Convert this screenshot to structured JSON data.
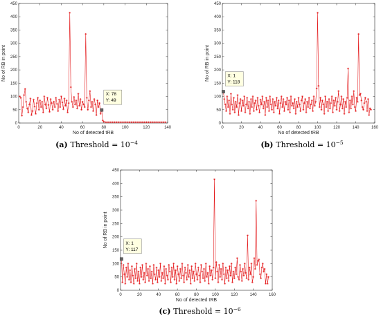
{
  "colors": {
    "series": "#e41a1c",
    "axis": "#262626",
    "datatip_bg": "#ffffe1",
    "datatip_border": "#7f7f7f"
  },
  "chart_data": [
    {
      "id": "a",
      "type": "line",
      "caption_letter": "(a)",
      "caption_text": "Threshold = 10",
      "caption_exp": "−4",
      "xlabel": "No of detected tRB",
      "ylabel": "No of RB in point",
      "xlim": [
        0,
        140
      ],
      "ylim": [
        0,
        450
      ],
      "xticks": [
        0,
        20,
        40,
        60,
        80,
        100,
        120,
        140
      ],
      "yticks": [
        0,
        50,
        100,
        150,
        200,
        250,
        300,
        350,
        400,
        450
      ],
      "grid": false,
      "datatip": {
        "point": [
          78,
          49
        ],
        "x_text": "X: 78",
        "y_text": "Y: 49"
      },
      "x": [
        1,
        2,
        3,
        4,
        5,
        6,
        7,
        8,
        9,
        10,
        11,
        12,
        13,
        14,
        15,
        16,
        17,
        18,
        19,
        20,
        21,
        22,
        23,
        24,
        25,
        26,
        27,
        28,
        29,
        30,
        31,
        32,
        33,
        34,
        35,
        36,
        37,
        38,
        39,
        40,
        41,
        42,
        43,
        44,
        45,
        46,
        47,
        48,
        49,
        50,
        51,
        52,
        53,
        54,
        55,
        56,
        57,
        58,
        59,
        60,
        61,
        62,
        63,
        64,
        65,
        66,
        67,
        68,
        69,
        70,
        71,
        72,
        73,
        74,
        75,
        76,
        77,
        78,
        79,
        80,
        82,
        84,
        86,
        88,
        90,
        92,
        94,
        96,
        98,
        100,
        102,
        104,
        106,
        108,
        110,
        112,
        114,
        116,
        118,
        120,
        122,
        124,
        126,
        128,
        130,
        132,
        134,
        136,
        138
      ],
      "y": [
        100,
        95,
        28,
        60,
        105,
        128,
        80,
        55,
        40,
        70,
        92,
        30,
        45,
        88,
        62,
        35,
        75,
        95,
        50,
        85,
        60,
        80,
        40,
        100,
        70,
        55,
        95,
        68,
        42,
        90,
        75,
        50,
        80,
        60,
        95,
        72,
        45,
        88,
        60,
        100,
        78,
        52,
        92,
        65,
        85,
        40,
        75,
        415,
        135,
        80,
        60,
        98,
        70,
        85,
        55,
        110,
        65,
        90,
        50,
        80,
        70,
        60,
        335,
        95,
        50,
        85,
        120,
        60,
        80,
        45,
        90,
        70,
        30,
        85,
        60,
        75,
        35,
        49,
        10,
        5,
        3,
        3,
        3,
        3,
        3,
        3,
        3,
        3,
        3,
        3,
        3,
        3,
        3,
        3,
        3,
        3,
        3,
        3,
        3,
        3,
        3,
        3,
        3,
        3,
        3,
        3,
        3,
        3,
        3
      ]
    },
    {
      "id": "b",
      "type": "line",
      "caption_letter": "(b)",
      "caption_text": "Threshold = 10",
      "caption_exp": "−5",
      "xlabel": "No of detected tRB",
      "ylabel": "No of RB in point",
      "xlim": [
        0,
        160
      ],
      "ylim": [
        0,
        450
      ],
      "xticks": [
        0,
        20,
        40,
        60,
        80,
        100,
        120,
        140,
        160
      ],
      "yticks": [
        0,
        50,
        100,
        150,
        200,
        250,
        300,
        350,
        400,
        450
      ],
      "grid": false,
      "datatip": {
        "point": [
          1,
          118
        ],
        "x_text": "X: 1",
        "y_text": "Y: 118"
      },
      "x": [
        1,
        2,
        3,
        4,
        5,
        6,
        7,
        8,
        9,
        10,
        11,
        12,
        13,
        14,
        15,
        16,
        17,
        18,
        19,
        20,
        21,
        22,
        23,
        24,
        25,
        26,
        27,
        28,
        29,
        30,
        31,
        32,
        33,
        34,
        35,
        36,
        37,
        38,
        39,
        40,
        41,
        42,
        43,
        44,
        45,
        46,
        47,
        48,
        49,
        50,
        51,
        52,
        53,
        54,
        55,
        56,
        57,
        58,
        59,
        60,
        61,
        62,
        63,
        64,
        65,
        66,
        67,
        68,
        69,
        70,
        71,
        72,
        73,
        74,
        75,
        76,
        77,
        78,
        79,
        80,
        81,
        82,
        83,
        84,
        85,
        86,
        87,
        88,
        89,
        90,
        91,
        92,
        93,
        94,
        95,
        96,
        97,
        98,
        99,
        100,
        101,
        102,
        103,
        104,
        105,
        106,
        107,
        108,
        109,
        110,
        111,
        112,
        113,
        114,
        115,
        116,
        117,
        118,
        119,
        120,
        121,
        122,
        123,
        124,
        125,
        126,
        127,
        128,
        129,
        130,
        131,
        132,
        133,
        134,
        135,
        136,
        137,
        138,
        139,
        140,
        141,
        142,
        143,
        144,
        145,
        146,
        147,
        148,
        149,
        150,
        151,
        152,
        153,
        154,
        155,
        156
      ],
      "y": [
        118,
        90,
        70,
        45,
        100,
        60,
        85,
        35,
        110,
        70,
        50,
        95,
        40,
        80,
        60,
        105,
        30,
        75,
        90,
        45,
        85,
        65,
        100,
        40,
        70,
        95,
        55,
        80,
        35,
        90,
        60,
        100,
        45,
        75,
        85,
        50,
        95,
        65,
        40,
        88,
        70,
        100,
        55,
        80,
        30,
        95,
        60,
        85,
        45,
        100,
        70,
        50,
        90,
        40,
        80,
        65,
        95,
        55,
        85,
        35,
        75,
        100,
        60,
        90,
        45,
        80,
        70,
        95,
        50,
        85,
        40,
        100,
        65,
        75,
        55,
        90,
        35,
        80,
        60,
        95,
        70,
        45,
        85,
        100,
        50,
        75,
        90,
        40,
        80,
        60,
        95,
        55,
        70,
        85,
        45,
        100,
        65,
        80,
        130,
        415,
        140,
        60,
        95,
        50,
        85,
        70,
        35,
        100,
        60,
        80,
        45,
        90,
        55,
        75,
        100,
        40,
        85,
        65,
        95,
        50,
        80,
        120,
        45,
        70,
        100,
        55,
        90,
        35,
        80,
        60,
        95,
        205,
        40,
        85,
        55,
        100,
        70,
        120,
        60,
        45,
        95,
        80,
        335,
        105,
        110,
        85,
        60,
        50,
        75,
        95,
        80,
        45,
        90,
        30,
        55,
        50
      ]
    },
    {
      "id": "c",
      "type": "line",
      "caption_letter": "(c)",
      "caption_text": "Threshold = 10",
      "caption_exp": "−6",
      "xlabel": "No of detected tRB",
      "ylabel": "No of RB in point",
      "xlim": [
        0,
        160
      ],
      "ylim": [
        0,
        450
      ],
      "xticks": [
        0,
        20,
        40,
        60,
        80,
        100,
        120,
        140,
        160
      ],
      "yticks": [
        0,
        50,
        100,
        150,
        200,
        250,
        300,
        350,
        400,
        450
      ],
      "grid": false,
      "datatip": {
        "point": [
          1,
          117
        ],
        "x_text": "X: 1",
        "y_text": "Y: 117"
      },
      "x": [
        1,
        2,
        3,
        4,
        5,
        6,
        7,
        8,
        9,
        10,
        11,
        12,
        13,
        14,
        15,
        16,
        17,
        18,
        19,
        20,
        21,
        22,
        23,
        24,
        25,
        26,
        27,
        28,
        29,
        30,
        31,
        32,
        33,
        34,
        35,
        36,
        37,
        38,
        39,
        40,
        41,
        42,
        43,
        44,
        45,
        46,
        47,
        48,
        49,
        50,
        51,
        52,
        53,
        54,
        55,
        56,
        57,
        58,
        59,
        60,
        61,
        62,
        63,
        64,
        65,
        66,
        67,
        68,
        69,
        70,
        71,
        72,
        73,
        74,
        75,
        76,
        77,
        78,
        79,
        80,
        81,
        82,
        83,
        84,
        85,
        86,
        87,
        88,
        89,
        90,
        91,
        92,
        93,
        94,
        95,
        96,
        97,
        98,
        99,
        100,
        101,
        102,
        103,
        104,
        105,
        106,
        107,
        108,
        109,
        110,
        111,
        112,
        113,
        114,
        115,
        116,
        117,
        118,
        119,
        120,
        121,
        122,
        123,
        124,
        125,
        126,
        127,
        128,
        129,
        130,
        131,
        132,
        133,
        134,
        135,
        136,
        137,
        138,
        139,
        140,
        141,
        142,
        143,
        144,
        145,
        146,
        147,
        148,
        149,
        150,
        151,
        152,
        153,
        154,
        155,
        156
      ],
      "y": [
        117,
        30,
        95,
        60,
        25,
        85,
        50,
        100,
        40,
        75,
        30,
        90,
        55,
        25,
        80,
        45,
        100,
        35,
        70,
        25,
        85,
        50,
        95,
        40,
        65,
        30,
        100,
        55,
        80,
        35,
        90,
        45,
        70,
        25,
        95,
        60,
        40,
        85,
        30,
        75,
        50,
        100,
        35,
        65,
        45,
        90,
        25,
        80,
        55,
        40,
        95,
        70,
        30,
        85,
        50,
        100,
        40,
        75,
        25,
        90,
        60,
        35,
        80,
        45,
        100,
        55,
        30,
        85,
        65,
        40,
        95,
        50,
        75,
        25,
        90,
        45,
        70,
        35,
        100,
        60,
        40,
        85,
        55,
        30,
        95,
        70,
        45,
        80,
        35,
        100,
        50,
        65,
        25,
        90,
        55,
        75,
        40,
        85,
        415,
        45,
        105,
        70,
        30,
        95,
        50,
        80,
        40,
        100,
        60,
        25,
        85,
        45,
        75,
        35,
        90,
        55,
        100,
        30,
        70,
        45,
        85,
        60,
        120,
        50,
        40,
        95,
        70,
        35,
        80,
        55,
        100,
        65,
        45,
        205,
        40,
        85,
        60,
        100,
        30,
        50,
        120,
        80,
        335,
        95,
        110,
        115,
        60,
        45,
        85,
        100,
        70,
        80,
        25,
        60,
        25,
        50
      ]
    }
  ]
}
